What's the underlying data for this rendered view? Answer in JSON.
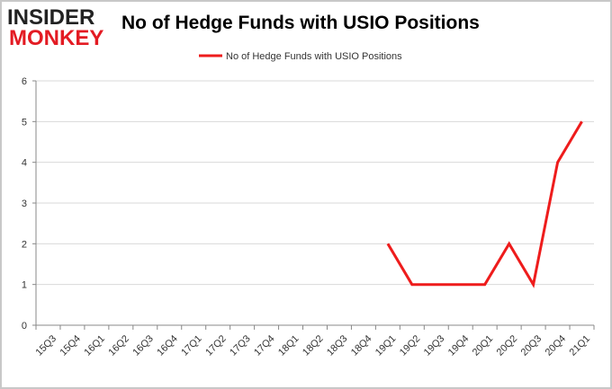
{
  "logo": {
    "line1": "INSIDER",
    "line2": "MONKEY"
  },
  "colors": {
    "series": "#ee1c1c",
    "grid": "#d9d9d9",
    "axis": "#888888",
    "logo_red": "#e31b23"
  },
  "chart_data": {
    "type": "line",
    "title": "No of Hedge Funds with USIO Positions",
    "xlabel": "",
    "ylabel": "",
    "ylim": [
      0,
      6
    ],
    "yticks": [
      0,
      1,
      2,
      3,
      4,
      5,
      6
    ],
    "grid": true,
    "legend": "top-center",
    "categories": [
      "15Q3",
      "15Q4",
      "16Q1",
      "16Q2",
      "16Q3",
      "16Q4",
      "17Q1",
      "17Q2",
      "17Q3",
      "17Q4",
      "18Q1",
      "18Q2",
      "18Q3",
      "18Q4",
      "19Q1",
      "19Q2",
      "19Q3",
      "19Q4",
      "20Q1",
      "20Q2",
      "20Q3",
      "20Q4",
      "21Q1"
    ],
    "series": [
      {
        "name": "No of Hedge Funds with USIO Positions",
        "values": [
          null,
          null,
          null,
          null,
          null,
          null,
          null,
          null,
          null,
          null,
          null,
          null,
          null,
          null,
          2,
          1,
          1,
          1,
          1,
          2,
          1,
          4,
          5
        ]
      }
    ]
  }
}
